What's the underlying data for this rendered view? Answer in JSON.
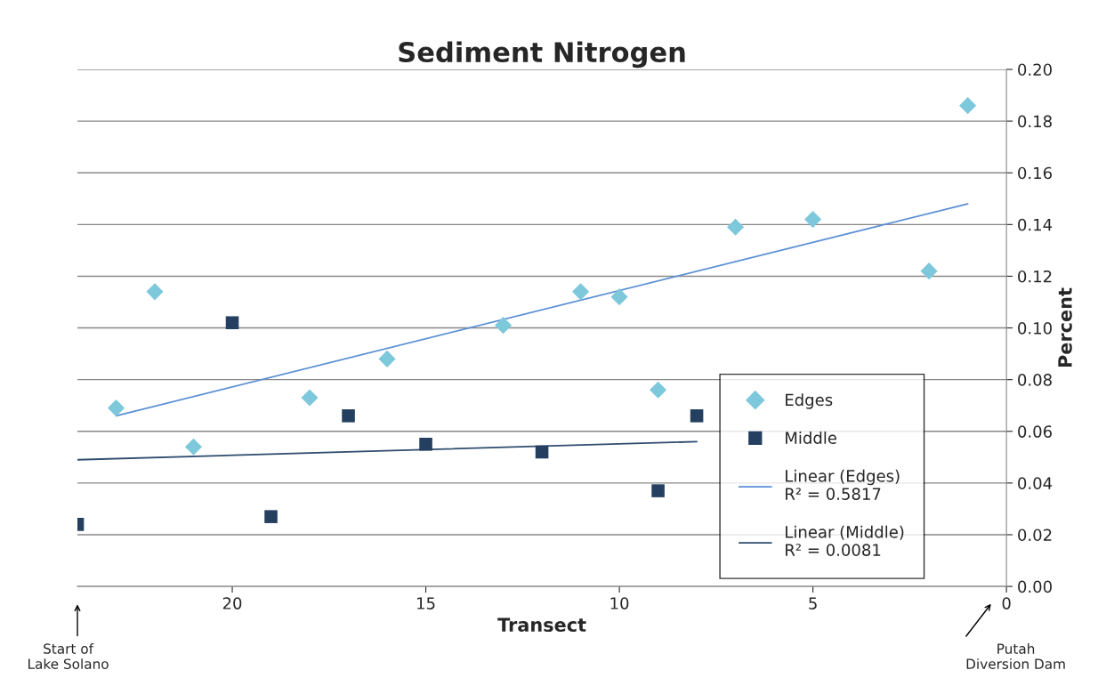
{
  "chart_data": {
    "type": "scatter",
    "title": "Sediment Nitrogen",
    "xlabel": "Transect",
    "ylabel": "Percent",
    "xlim": [
      24,
      0
    ],
    "xticks": [
      20,
      15,
      10,
      5,
      0
    ],
    "ylim": [
      0,
      0.2
    ],
    "yticks": [
      {
        "value": 0,
        "label": "0.00"
      },
      {
        "value": 0.02,
        "label": "0.02"
      },
      {
        "value": 0.04,
        "label": "0.04"
      },
      {
        "value": 0.06,
        "label": "0.06"
      },
      {
        "value": 0.08,
        "label": "0.08"
      },
      {
        "value": 0.1,
        "label": "0.10"
      },
      {
        "value": 0.12,
        "label": "0.12"
      },
      {
        "value": 0.14,
        "label": "0.14"
      },
      {
        "value": 0.16,
        "label": "0.16"
      },
      {
        "value": 0.18,
        "label": "0.18"
      },
      {
        "value": 0.2,
        "label": "0.20"
      }
    ],
    "grid": "y",
    "legend": "bottom right",
    "series": [
      {
        "name": "Edges",
        "marker": "diamond",
        "color": "#7ec8dc",
        "x": [
          23,
          22,
          21,
          18,
          16,
          13,
          11,
          10,
          9,
          7,
          5,
          2,
          1
        ],
        "values": [
          0.069,
          0.114,
          0.054,
          0.073,
          0.088,
          0.101,
          0.114,
          0.112,
          0.076,
          0.139,
          0.142,
          0.122,
          0.186
        ]
      },
      {
        "name": "Middle",
        "marker": "square",
        "color": "#243f60",
        "x": [
          24,
          20,
          19,
          17,
          15,
          12,
          9,
          8
        ],
        "values": [
          0.024,
          0.102,
          0.027,
          0.066,
          0.055,
          0.052,
          0.037,
          0.066
        ]
      },
      {
        "name": "Linear (Edges)\nR² = 0.5817",
        "type": "line",
        "marker": "none",
        "color": "#5b8fd6",
        "x": [
          23,
          1
        ],
        "values": [
          0.066,
          0.148
        ]
      },
      {
        "name": "Linear (Middle)\nR² = 0.0081",
        "type": "line",
        "marker": "none",
        "color": "#2f4d6e",
        "x": [
          24,
          8
        ],
        "values": [
          0.049,
          0.056
        ]
      }
    ],
    "annotations": [
      "Start of\nLake Solano",
      "Putah\nDiversion Dam"
    ]
  }
}
